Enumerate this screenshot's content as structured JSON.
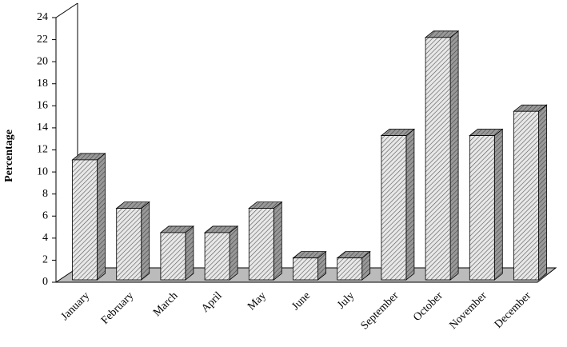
{
  "chart_data": {
    "type": "bar3d",
    "y_label": "Percentage",
    "categories": [
      "January",
      "February",
      "March",
      "April",
      "May",
      "June",
      "July",
      "September",
      "October",
      "November",
      "December"
    ],
    "values": [
      11.1,
      6.7,
      4.5,
      4.5,
      6.7,
      2.2,
      2.2,
      13.3,
      22.2,
      13.3,
      15.5
    ],
    "ylim": [
      0,
      24
    ],
    "yticks": [
      0,
      2,
      4,
      6,
      8,
      10,
      12,
      14,
      16,
      18,
      20,
      22,
      24
    ]
  }
}
